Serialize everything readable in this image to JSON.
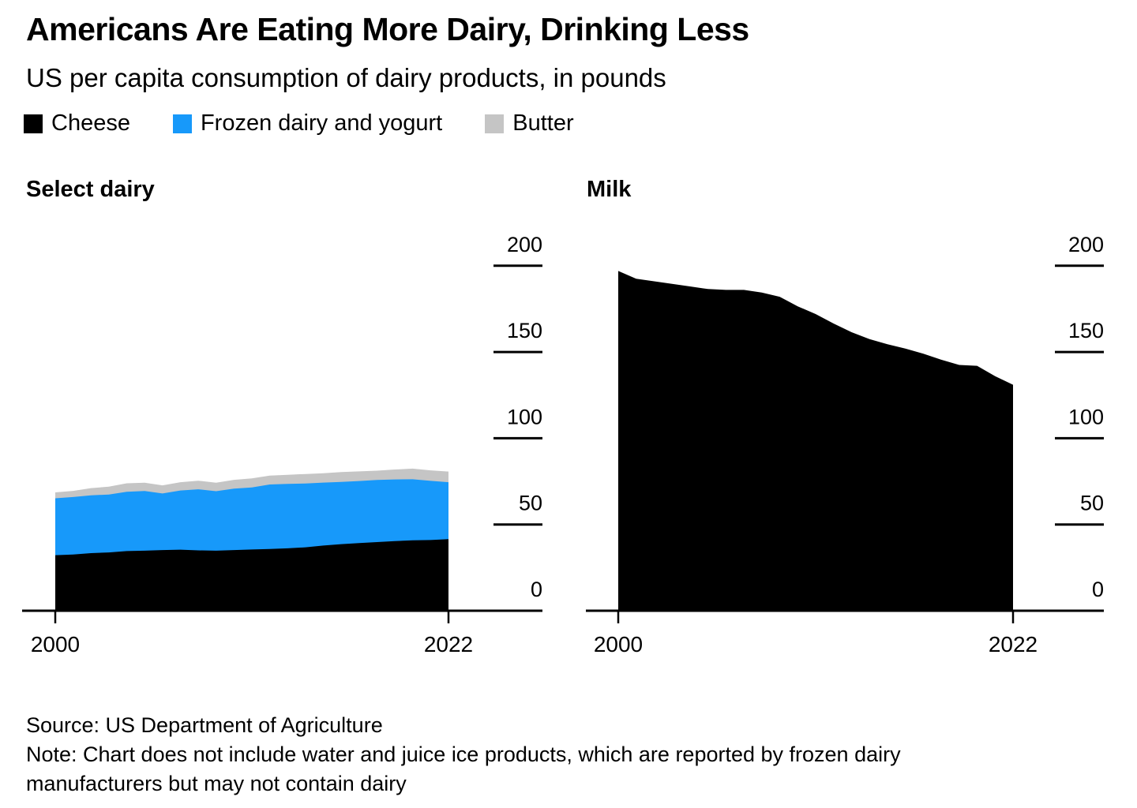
{
  "header": {
    "title": "Americans Are Eating More Dairy, Drinking Less",
    "subtitle": "US per capita consumption of dairy products, in pounds"
  },
  "legend": {
    "items": [
      {
        "label": "Cheese",
        "color": "#000000"
      },
      {
        "label": "Frozen dairy and yogurt",
        "color": "#1799FA"
      },
      {
        "label": "Butter",
        "color": "#C5C5C5"
      }
    ]
  },
  "chart_data": [
    {
      "type": "area",
      "title": "Select dairy",
      "stacked": true,
      "x": [
        2000,
        2001,
        2002,
        2003,
        2004,
        2005,
        2006,
        2007,
        2008,
        2009,
        2010,
        2011,
        2012,
        2013,
        2014,
        2015,
        2016,
        2017,
        2018,
        2019,
        2020,
        2021,
        2022
      ],
      "series": [
        {
          "name": "Cheese",
          "color": "#000000",
          "values": [
            32.2,
            32.6,
            33.4,
            33.8,
            34.6,
            34.8,
            35.2,
            35.4,
            35.0,
            34.8,
            35.2,
            35.5,
            35.8,
            36.2,
            36.8,
            37.8,
            38.6,
            39.2,
            39.8,
            40.4,
            40.8,
            41.0,
            41.5
          ]
        },
        {
          "name": "Frozen dairy and yogurt",
          "color": "#1799FA",
          "values": [
            33.0,
            33.3,
            33.5,
            33.6,
            34.4,
            34.6,
            32.8,
            34.3,
            35.4,
            34.5,
            35.6,
            36.0,
            37.4,
            37.3,
            37.0,
            36.5,
            36.1,
            36.0,
            36.0,
            35.7,
            35.4,
            34.3,
            33.0
          ]
        },
        {
          "name": "Butter",
          "color": "#C5C5C5",
          "values": [
            3.4,
            3.6,
            4.2,
            4.5,
            4.9,
            4.8,
            4.7,
            4.8,
            5.0,
            4.9,
            5.1,
            5.2,
            5.1,
            5.3,
            5.5,
            5.4,
            5.7,
            5.6,
            5.4,
            5.8,
            6.2,
            6.1,
            6.2
          ]
        }
      ],
      "xticks": [
        2000,
        2022
      ],
      "yticks": [
        0,
        50,
        100,
        150,
        200
      ],
      "ylim": [
        0,
        200
      ],
      "grid": false,
      "legend_position": "top"
    },
    {
      "type": "area",
      "title": "Milk",
      "stacked": false,
      "x": [
        2000,
        2001,
        2002,
        2003,
        2004,
        2005,
        2006,
        2007,
        2008,
        2009,
        2010,
        2011,
        2012,
        2013,
        2014,
        2015,
        2016,
        2017,
        2018,
        2019,
        2020,
        2021,
        2022
      ],
      "series": [
        {
          "name": "Milk",
          "color": "#000000",
          "values": [
            197,
            192.5,
            191,
            189.5,
            188,
            186.5,
            186,
            186,
            184.5,
            182,
            176.5,
            172,
            166.5,
            161.5,
            157.5,
            154.5,
            152,
            149,
            145.5,
            142.5,
            142,
            136,
            131
          ]
        }
      ],
      "xticks": [
        2000,
        2022
      ],
      "yticks": [
        0,
        50,
        100,
        150,
        200
      ],
      "ylim": [
        0,
        200
      ],
      "grid": false
    }
  ],
  "footer": {
    "source": "Source: US Department of Agriculture",
    "note": "Note: Chart does not include water and juice ice products, which are reported by frozen dairy manufacturers but may not contain dairy"
  }
}
